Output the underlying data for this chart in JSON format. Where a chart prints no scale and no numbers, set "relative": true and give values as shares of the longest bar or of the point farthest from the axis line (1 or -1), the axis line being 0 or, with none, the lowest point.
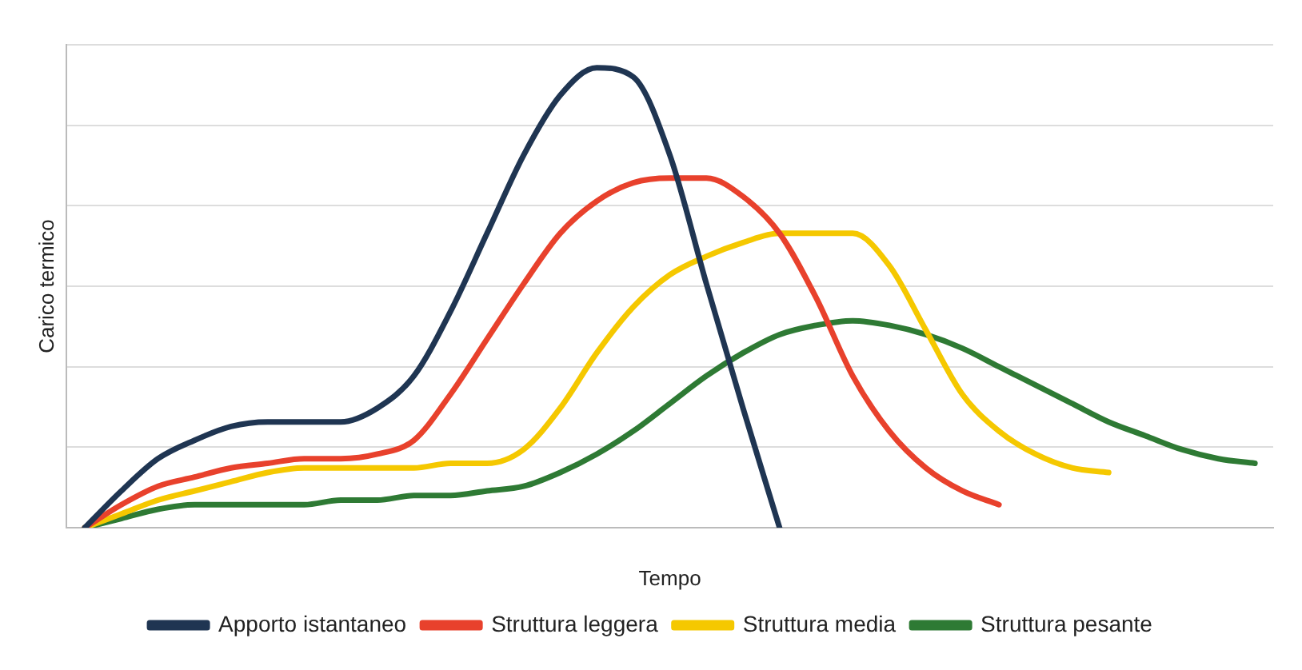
{
  "chart_data": {
    "type": "line",
    "relative": true,
    "xlabel": "Tempo",
    "ylabel": "Carico termico",
    "grid": "y",
    "legend": "bottom",
    "marker": "none",
    "line_style": "solid",
    "categories": [
      null,
      null,
      null,
      null,
      null,
      null,
      null,
      null,
      null,
      null,
      null,
      null,
      null,
      null,
      null,
      null,
      null,
      null,
      null,
      null,
      null,
      null,
      null,
      null,
      null,
      null,
      null,
      null,
      null,
      null,
      null,
      null,
      null
    ],
    "series": [
      {
        "name": "Apporto istantaneo",
        "color": "#1f3552",
        "values": [
          0,
          0.08,
          0.15,
          0.19,
          0.22,
          0.23,
          0.23,
          0.23,
          0.26,
          0.33,
          0.47,
          0.64,
          0.81,
          0.94,
          1,
          0.98,
          0.81,
          0.53,
          0.26,
          0,
          null,
          null,
          null,
          null,
          null,
          null,
          null,
          null,
          null,
          null,
          null,
          null,
          null
        ]
      },
      {
        "name": "Struttura leggera",
        "color": "#e8412c",
        "values": [
          0,
          0.05,
          0.09,
          0.11,
          0.13,
          0.14,
          0.15,
          0.15,
          0.16,
          0.19,
          0.29,
          0.41,
          0.53,
          0.64,
          0.71,
          0.75,
          0.76,
          0.76,
          0.72,
          0.64,
          0.5,
          0.33,
          0.21,
          0.13,
          0.08,
          0.05,
          null,
          null,
          null,
          null,
          null,
          null,
          null
        ]
      },
      {
        "name": "Struttura media",
        "color": "#f5c800",
        "values": [
          0,
          0.03,
          0.06,
          0.08,
          0.1,
          0.12,
          0.13,
          0.13,
          0.13,
          0.13,
          0.14,
          0.14,
          0.17,
          0.26,
          0.38,
          0.48,
          0.55,
          0.59,
          0.62,
          0.64,
          0.64,
          0.64,
          0.57,
          0.43,
          0.29,
          0.21,
          0.16,
          0.13,
          0.12,
          null,
          null,
          null,
          null
        ]
      },
      {
        "name": "Struttura pesante",
        "color": "#2e7a34",
        "values": [
          0,
          0.02,
          0.04,
          0.05,
          0.05,
          0.05,
          0.05,
          0.06,
          0.06,
          0.07,
          0.07,
          0.08,
          0.09,
          0.12,
          0.16,
          0.21,
          0.27,
          0.33,
          0.38,
          0.42,
          0.44,
          0.45,
          0.44,
          0.42,
          0.39,
          0.35,
          0.31,
          0.27,
          0.23,
          0.2,
          0.17,
          0.15,
          0.14
        ]
      }
    ]
  }
}
